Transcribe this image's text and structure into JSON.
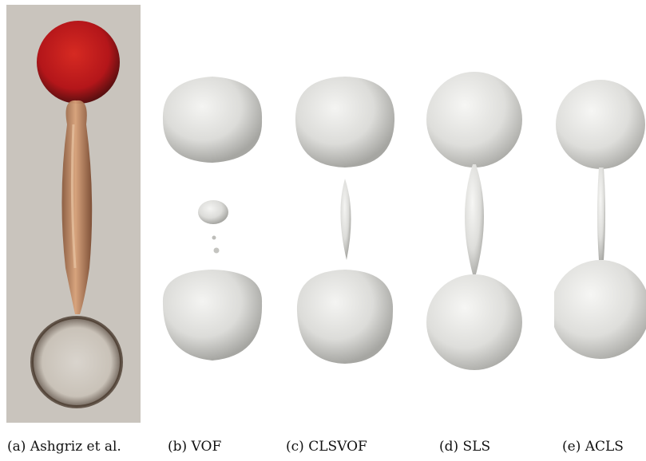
{
  "panels": [
    {
      "id": "a",
      "caption": "(a) Ashgriz et al."
    },
    {
      "id": "b",
      "caption": "(b) VOF"
    },
    {
      "id": "c",
      "caption": "(c) CLSVOF"
    },
    {
      "id": "d",
      "caption": "(d) SLS"
    },
    {
      "id": "e",
      "caption": "(e) ACLS"
    }
  ]
}
